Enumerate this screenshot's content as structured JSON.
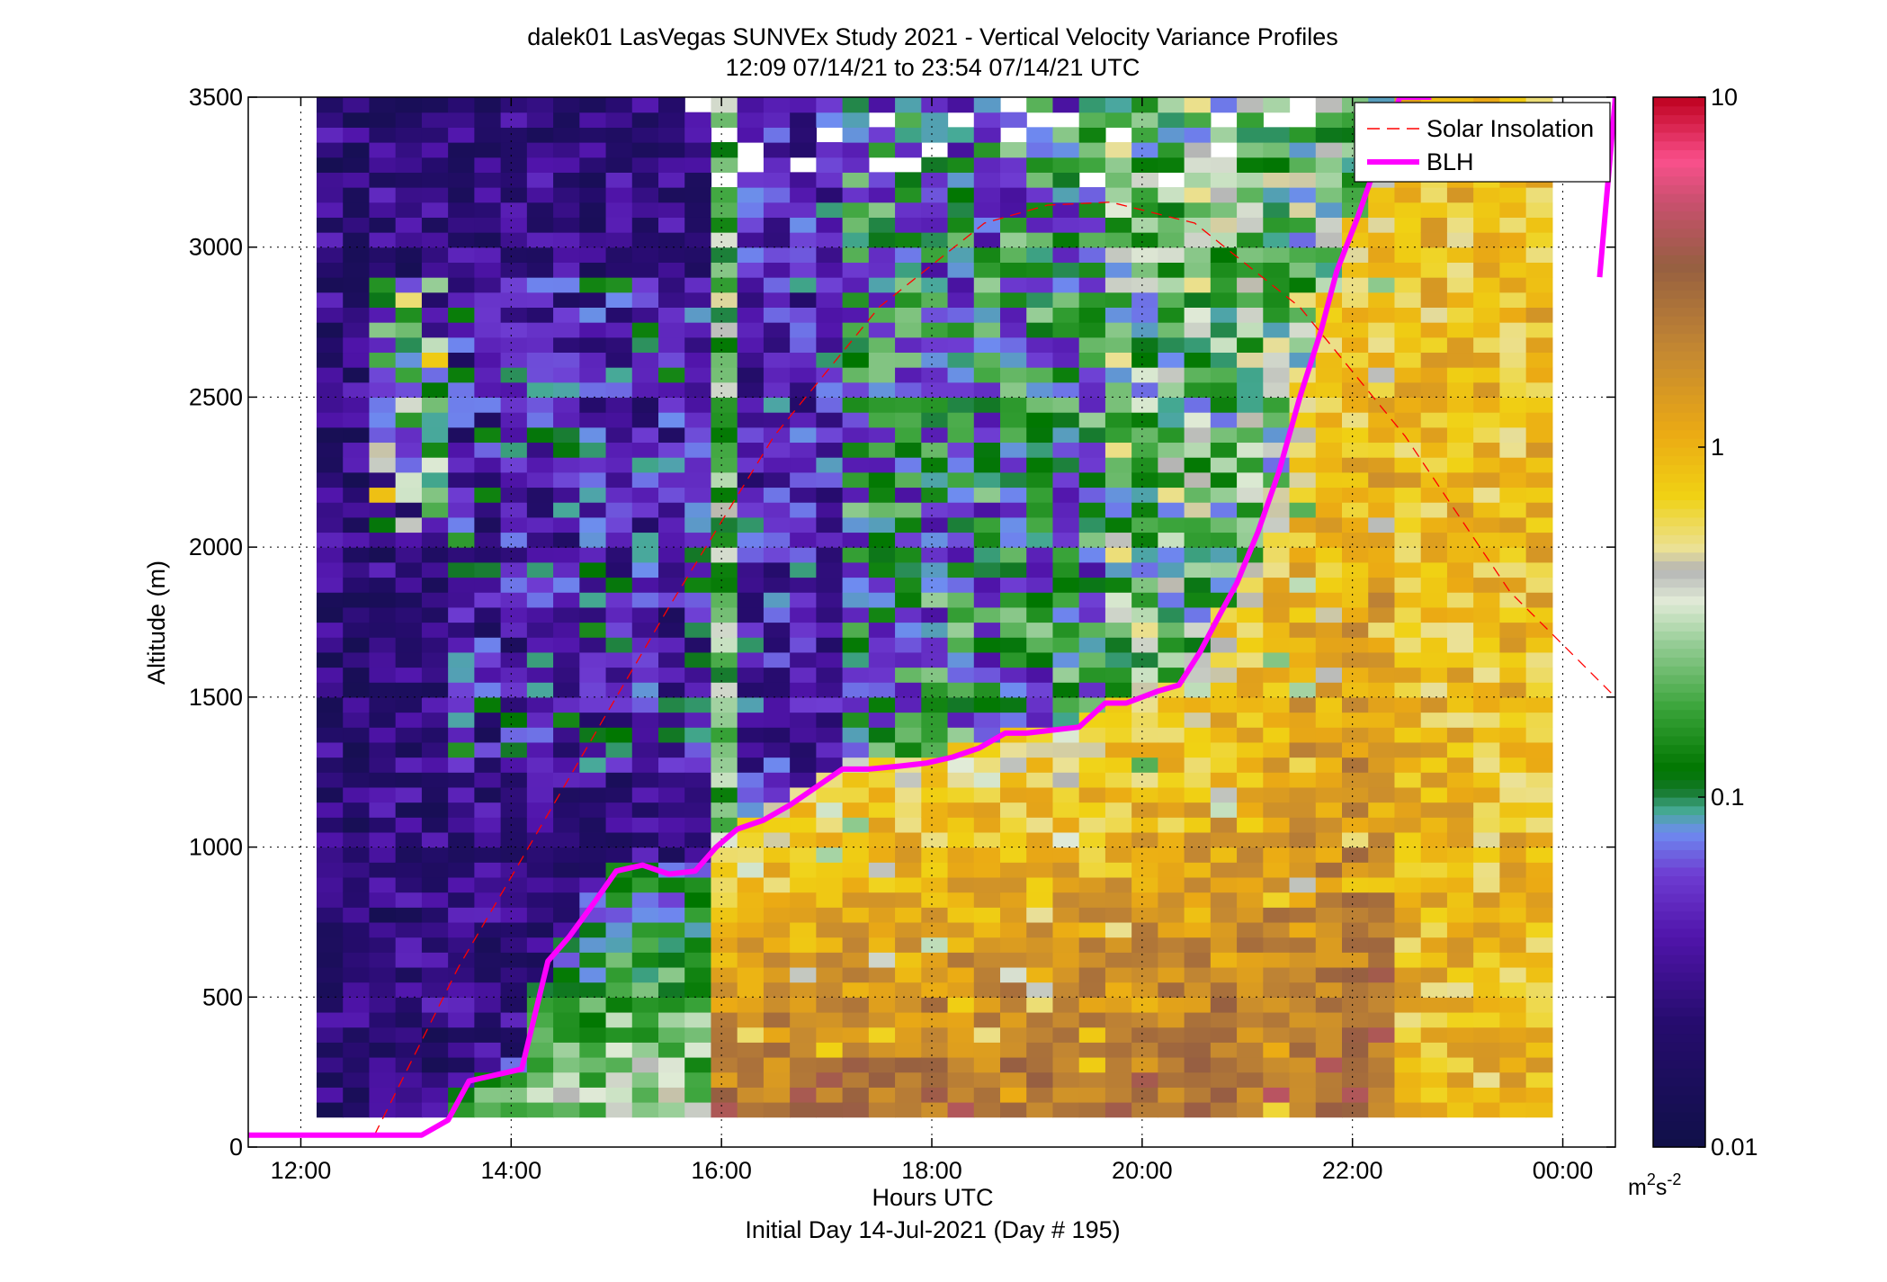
{
  "chart_data": {
    "type": "heatmap",
    "title": "dalek01 LasVegas SUNVEx Study 2021 - Vertical Velocity Variance Profiles",
    "subtitle": "12:09 07/14/21 to 23:54 07/14/21  UTC",
    "xlabel": "Hours UTC",
    "xlabel2": "Initial Day 14-Jul-2021 (Day # 195)",
    "ylabel": "Altitude (m)",
    "x_range_hours": [
      11.5,
      24.5
    ],
    "xlim": [
      "11:30",
      "00:30"
    ],
    "ylim": [
      0,
      3500
    ],
    "x_ticks": [
      {
        "h": 12,
        "label": "12:00"
      },
      {
        "h": 14,
        "label": "14:00"
      },
      {
        "h": 16,
        "label": "16:00"
      },
      {
        "h": 18,
        "label": "18:00"
      },
      {
        "h": 20,
        "label": "20:00"
      },
      {
        "h": 22,
        "label": "22:00"
      },
      {
        "h": 24,
        "label": "00:00"
      }
    ],
    "y_ticks": [
      {
        "v": 0,
        "label": "0"
      },
      {
        "v": 500,
        "label": "500"
      },
      {
        "v": 1000,
        "label": "1000"
      },
      {
        "v": 1500,
        "label": "1500"
      },
      {
        "v": 2000,
        "label": "2000"
      },
      {
        "v": 2500,
        "label": "2500"
      },
      {
        "v": 3000,
        "label": "3000"
      },
      {
        "v": 3500,
        "label": "3500"
      }
    ],
    "grid": true,
    "colorbar": {
      "scale": "log",
      "range": [
        0.01,
        10
      ],
      "ticks": [
        {
          "v": 0.01,
          "label": "0.01"
        },
        {
          "v": 0.1,
          "label": "0.1"
        },
        {
          "v": 1,
          "label": "1"
        },
        {
          "v": 10,
          "label": "10"
        }
      ],
      "units_base": "m",
      "units_sup1": "2",
      "units_mid": "s",
      "units_sup2": "-2"
    },
    "legend": {
      "position": "top-right",
      "entries": [
        {
          "label": "Solar Insolation",
          "color": "#ff0000",
          "style": "dashed"
        },
        {
          "label": "BLH",
          "color": "#ff00ff",
          "style": "solid"
        }
      ]
    },
    "heatmap_description_points": {
      "x_hours_start": 12.15,
      "x_hours_end": 23.9,
      "y_start": 100,
      "y_end": 3500
    },
    "series": [
      {
        "name": "BLH",
        "x_hours": [
          11.5,
          13.15,
          13.4,
          13.6,
          14.1,
          14.35,
          14.55,
          14.8,
          15.0,
          15.25,
          15.5,
          15.75,
          15.95,
          16.15,
          16.4,
          16.65,
          16.9,
          17.15,
          17.4,
          17.7,
          17.95,
          18.2,
          18.45,
          18.7,
          18.9,
          19.15,
          19.4,
          19.65,
          19.85,
          20.15,
          20.35,
          20.55,
          20.7,
          20.9,
          21.1,
          21.3,
          21.5,
          21.7,
          21.85,
          22.05,
          22.25,
          22.45,
          22.65,
          22.75
        ],
        "y": [
          40,
          40,
          90,
          220,
          260,
          620,
          700,
          820,
          920,
          940,
          910,
          920,
          1000,
          1060,
          1090,
          1140,
          1200,
          1260,
          1260,
          1270,
          1280,
          1300,
          1330,
          1380,
          1380,
          1390,
          1400,
          1480,
          1480,
          1520,
          1540,
          1650,
          1750,
          1880,
          2050,
          2250,
          2500,
          2720,
          2920,
          3100,
          3300,
          3500,
          3500,
          3500
        ]
      },
      {
        "name": "BLH_late",
        "x_hours": [
          24.35,
          24.5
        ],
        "y": [
          2900,
          3500
        ]
      },
      {
        "name": "Solar Insolation",
        "x_hours": [
          12.7,
          13.5,
          14.5,
          15.5,
          16.5,
          17.5,
          18.5,
          19.1,
          19.7,
          20.5,
          21.5,
          22.5,
          23.5,
          24.5
        ],
        "y": [
          40,
          600,
          1200,
          1800,
          2370,
          2800,
          3080,
          3140,
          3150,
          3080,
          2800,
          2370,
          1850,
          1500
        ]
      }
    ]
  }
}
